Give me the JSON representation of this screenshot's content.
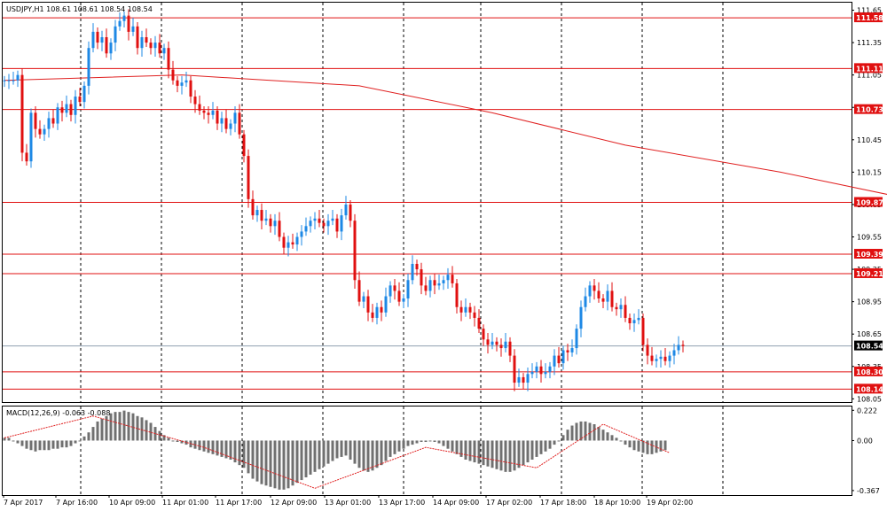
{
  "chart_data": [
    {
      "type": "candlestick",
      "header": "USDJPY,H1  108.61 108.61 108.54 108.54",
      "y_ticks": [
        111.65,
        111.35,
        111.05,
        110.75,
        110.45,
        110.15,
        109.85,
        109.55,
        109.25,
        108.95,
        108.65,
        108.35,
        108.05
      ],
      "ylim": [
        108.02,
        111.72
      ],
      "x_labels": [
        "7 Apr 2017",
        "7 Apr 16:00",
        "10 Apr 09:00",
        "11 Apr 01:00",
        "11 Apr 17:00",
        "12 Apr 09:00",
        "13 Apr 01:00",
        "13 Apr 17:00",
        "14 Apr 09:00",
        "17 Apr 02:00",
        "17 Apr 18:00",
        "18 Apr 10:00",
        "19 Apr 02:00"
      ],
      "levels": [
        {
          "label": "111.58",
          "value": 111.58
        },
        {
          "label": "111.11",
          "value": 111.11
        },
        {
          "label": "110.73",
          "value": 110.73
        },
        {
          "label": "109.87",
          "value": 109.87
        },
        {
          "label": "109.39",
          "value": 109.39
        },
        {
          "label": "109.21",
          "value": 109.21
        },
        {
          "label": "108.30",
          "value": 108.3
        },
        {
          "label": "108.14",
          "value": 108.14
        }
      ],
      "current_price": {
        "label": "108.54",
        "value": 108.54
      },
      "bars": [
        111.0,
        111.0,
        111.0,
        111.05,
        110.33,
        110.25,
        110.7,
        110.55,
        110.5,
        110.55,
        110.65,
        110.6,
        110.75,
        110.7,
        110.78,
        110.68,
        110.85,
        110.8,
        110.95,
        111.3,
        111.45,
        111.35,
        111.4,
        111.25,
        111.35,
        111.5,
        111.55,
        111.6,
        111.45,
        111.5,
        111.3,
        111.4,
        111.35,
        111.3,
        111.35,
        111.25,
        111.3,
        111.1,
        111.0,
        110.95,
        110.98,
        111.0,
        110.85,
        110.78,
        110.72,
        110.7,
        110.68,
        110.72,
        110.6,
        110.65,
        110.55,
        110.6,
        110.7,
        110.5,
        110.3,
        109.9,
        109.75,
        109.8,
        109.7,
        109.72,
        109.65,
        109.7,
        109.55,
        109.45,
        109.5,
        109.48,
        109.55,
        109.6,
        109.65,
        109.7,
        109.72,
        109.68,
        109.65,
        109.7,
        109.72,
        109.6,
        109.75,
        109.85,
        109.7,
        109.15,
        108.95,
        109.0,
        108.85,
        108.8,
        108.9,
        108.85,
        109.0,
        109.1,
        109.05,
        108.95,
        108.98,
        109.15,
        109.3,
        109.25,
        109.1,
        109.05,
        109.15,
        109.1,
        109.12,
        109.15,
        109.2,
        109.12,
        108.9,
        108.85,
        108.9,
        108.85,
        108.8,
        108.7,
        108.6,
        108.55,
        108.58,
        108.55,
        108.52,
        108.58,
        108.45,
        108.2,
        108.25,
        108.2,
        108.28,
        108.3,
        108.35,
        108.28,
        108.3,
        108.35,
        108.45,
        108.38,
        108.5,
        108.48,
        108.52,
        108.7,
        108.9,
        109.0,
        109.1,
        109.05,
        108.98,
        108.95,
        109.05,
        108.9,
        108.88,
        108.92,
        108.8,
        108.75,
        108.78,
        108.8,
        108.55,
        108.45,
        108.4,
        108.42,
        108.44,
        108.4,
        108.45,
        108.5,
        108.55,
        108.54
      ],
      "ma_points": [
        [
          0,
          111.0
        ],
        [
          40,
          111.05
        ],
        [
          80,
          110.95
        ],
        [
          110,
          110.7
        ],
        [
          140,
          110.4
        ],
        [
          175,
          110.15
        ],
        [
          210,
          109.85
        ],
        [
          250,
          109.6
        ]
      ],
      "macd": {
        "title": "MACD(12,26,9) -0.063 -0.088",
        "y_ticks": [
          0.222,
          0.0,
          -0.367
        ],
        "ylim": [
          -0.4,
          0.25
        ],
        "hist": [
          0.02,
          0.02,
          0.0,
          -0.02,
          -0.04,
          -0.06,
          -0.07,
          -0.08,
          -0.07,
          -0.07,
          -0.07,
          -0.06,
          -0.06,
          -0.05,
          -0.05,
          -0.04,
          -0.02,
          0.0,
          0.03,
          0.06,
          0.1,
          0.14,
          0.16,
          0.18,
          0.2,
          0.21,
          0.21,
          0.22,
          0.21,
          0.2,
          0.18,
          0.17,
          0.15,
          0.13,
          0.1,
          0.07,
          0.04,
          0.02,
          0.0,
          -0.01,
          -0.02,
          -0.03,
          -0.05,
          -0.06,
          -0.07,
          -0.08,
          -0.09,
          -0.1,
          -0.11,
          -0.12,
          -0.13,
          -0.14,
          -0.16,
          -0.18,
          -0.2,
          -0.24,
          -0.28,
          -0.3,
          -0.32,
          -0.33,
          -0.34,
          -0.35,
          -0.36,
          -0.36,
          -0.35,
          -0.33,
          -0.31,
          -0.29,
          -0.27,
          -0.25,
          -0.23,
          -0.21,
          -0.19,
          -0.17,
          -0.15,
          -0.13,
          -0.12,
          -0.11,
          -0.14,
          -0.17,
          -0.2,
          -0.22,
          -0.23,
          -0.22,
          -0.2,
          -0.18,
          -0.15,
          -0.12,
          -0.1,
          -0.08,
          -0.06,
          -0.04,
          -0.03,
          -0.02,
          -0.01,
          -0.01,
          0.0,
          -0.01,
          -0.02,
          -0.04,
          -0.06,
          -0.08,
          -0.1,
          -0.12,
          -0.14,
          -0.15,
          -0.16,
          -0.17,
          -0.18,
          -0.19,
          -0.2,
          -0.21,
          -0.22,
          -0.23,
          -0.23,
          -0.22,
          -0.2,
          -0.18,
          -0.16,
          -0.14,
          -0.12,
          -0.1,
          -0.08,
          -0.06,
          -0.03,
          0.0,
          0.04,
          0.08,
          0.11,
          0.13,
          0.14,
          0.14,
          0.13,
          0.12,
          0.1,
          0.08,
          0.06,
          0.04,
          0.02,
          0.0,
          -0.03,
          -0.05,
          -0.07,
          -0.08,
          -0.09,
          -0.1,
          -0.1,
          -0.09,
          -0.08,
          -0.07
        ],
        "signal": [
          [
            0,
            0.02
          ],
          [
            20,
            0.18
          ],
          [
            45,
            -0.05
          ],
          [
            70,
            -0.35
          ],
          [
            95,
            -0.05
          ],
          [
            120,
            -0.2
          ],
          [
            135,
            0.12
          ],
          [
            150,
            -0.09
          ]
        ]
      }
    }
  ]
}
